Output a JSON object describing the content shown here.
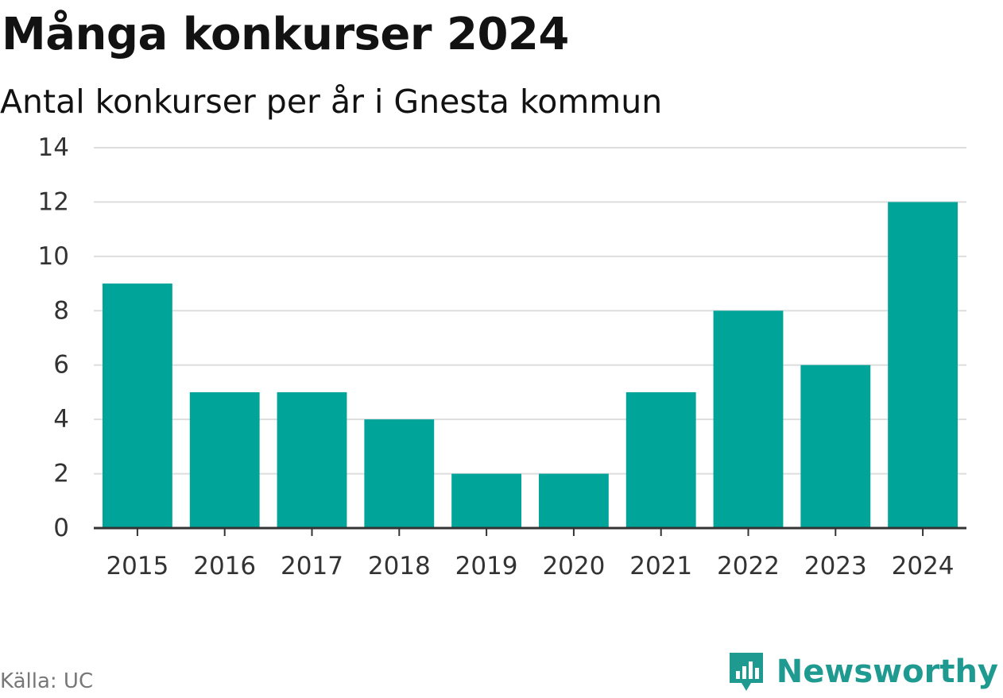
{
  "header": {
    "title": "Många konkurser 2024",
    "subtitle": "Antal konkurser per år i Gnesta kommun"
  },
  "footer": {
    "source": "Källa: UC",
    "brand": "Newsworthy",
    "brand_icon": "bar-chart-speech-bubble-icon"
  },
  "colors": {
    "bar": "#00A499",
    "grid": "#DDDDDD",
    "axis": "#333333",
    "brand": "#1F9A91"
  },
  "chart_data": {
    "type": "bar",
    "categories": [
      "2015",
      "2016",
      "2017",
      "2018",
      "2019",
      "2020",
      "2021",
      "2022",
      "2023",
      "2024"
    ],
    "values": [
      9,
      5,
      5,
      4,
      2,
      2,
      5,
      8,
      6,
      12
    ],
    "ylim": [
      0,
      14
    ],
    "yticks": [
      0,
      2,
      4,
      6,
      8,
      10,
      12,
      14
    ],
    "xlabel": "",
    "ylabel": "",
    "grid": true,
    "legend": "none"
  }
}
